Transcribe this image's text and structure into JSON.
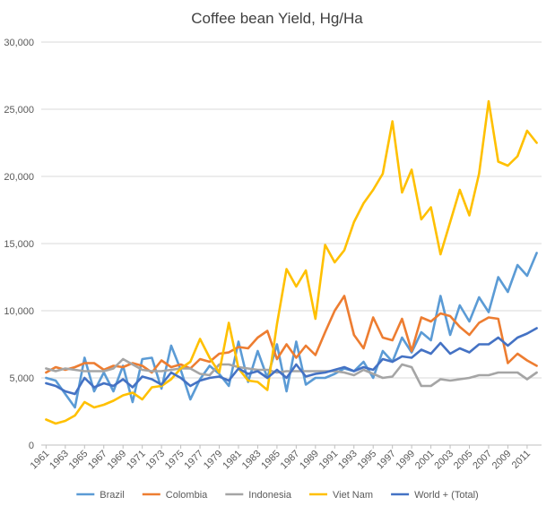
{
  "chart_data": {
    "type": "line",
    "title": "Coffee bean Yield, Hg/Ha",
    "xlabel": "",
    "ylabel": "",
    "ylim": [
      0,
      30000
    ],
    "yticks": [
      "0",
      "5,000",
      "10,000",
      "15,000",
      "20,000",
      "25,000",
      "30,000"
    ],
    "ytick_values": [
      0,
      5000,
      10000,
      15000,
      20000,
      25000,
      30000
    ],
    "x": [
      1961,
      1962,
      1963,
      1964,
      1965,
      1966,
      1967,
      1968,
      1969,
      1970,
      1971,
      1972,
      1973,
      1974,
      1975,
      1976,
      1977,
      1978,
      1979,
      1980,
      1981,
      1982,
      1983,
      1984,
      1985,
      1986,
      1987,
      1988,
      1989,
      1990,
      1991,
      1992,
      1993,
      1994,
      1995,
      1996,
      1997,
      1998,
      1999,
      2000,
      2001,
      2002,
      2003,
      2004,
      2005,
      2006,
      2007,
      2008,
      2009,
      2010,
      2011,
      2012
    ],
    "xtick_labels": [
      "1961",
      "1963",
      "1965",
      "1967",
      "1969",
      "1971",
      "1973",
      "1975",
      "1977",
      "1979",
      "1981",
      "1983",
      "1985",
      "1987",
      "1989",
      "1991",
      "1993",
      "1995",
      "1997",
      "1999",
      "2001",
      "2003",
      "2005",
      "2007",
      "2009",
      "2011"
    ],
    "legend_position": "bottom",
    "grid": true,
    "series": [
      {
        "name": "Brazil",
        "color": "#5b9bd5",
        "values": [
          5000,
          4800,
          3800,
          2800,
          6500,
          4000,
          5400,
          4000,
          5900,
          3200,
          6400,
          6500,
          4200,
          7400,
          5600,
          3400,
          4900,
          5900,
          5300,
          4400,
          7700,
          4700,
          7000,
          5000,
          7500,
          4000,
          7700,
          4500,
          5000,
          5000,
          5300,
          5700,
          5500,
          6200,
          5000,
          7000,
          6200,
          8000,
          6900,
          8400,
          7800,
          11100,
          8200,
          10400,
          9200,
          11000,
          9900,
          12500,
          11400,
          13400,
          12600,
          14300
        ]
      },
      {
        "name": "Colombia",
        "color": "#ed7d31",
        "values": [
          5400,
          5800,
          5600,
          5800,
          6100,
          6100,
          5600,
          5900,
          5800,
          6100,
          5900,
          5400,
          6300,
          5800,
          6000,
          5700,
          6400,
          6200,
          6800,
          6900,
          7300,
          7200,
          8000,
          8500,
          6400,
          7500,
          6500,
          7400,
          6700,
          8400,
          10000,
          11100,
          8200,
          7200,
          9500,
          8000,
          7800,
          9400,
          7000,
          9500,
          9200,
          9800,
          9600,
          8800,
          8200,
          9100,
          9500,
          9400,
          6100,
          6800,
          6300,
          5900
        ]
      },
      {
        "name": "Indonesia",
        "color": "#a5a5a5",
        "values": [
          5700,
          5500,
          5700,
          5600,
          5500,
          5500,
          5500,
          5700,
          6400,
          6000,
          5600,
          5500,
          5500,
          5600,
          5700,
          5700,
          5300,
          5200,
          6000,
          6000,
          5800,
          5700,
          5600,
          5600,
          5400,
          5500,
          5500,
          5500,
          5500,
          5500,
          5500,
          5400,
          5200,
          5600,
          5300,
          5000,
          5100,
          6000,
          5800,
          4400,
          4400,
          4900,
          4800,
          4900,
          5000,
          5200,
          5200,
          5400,
          5400,
          5400,
          4900,
          5400
        ]
      },
      {
        "name": "Viet Nam",
        "color": "#ffc000",
        "values": [
          1900,
          1600,
          1800,
          2200,
          3200,
          2800,
          3000,
          3300,
          3700,
          3900,
          3400,
          4300,
          4400,
          4900,
          5700,
          6200,
          7900,
          6500,
          5400,
          9100,
          5700,
          4800,
          4700,
          4100,
          9000,
          13100,
          11800,
          13000,
          9400,
          14900,
          13600,
          14500,
          16600,
          18000,
          19000,
          20200,
          24100,
          18800,
          20500,
          16800,
          17700,
          14200,
          16600,
          19000,
          17100,
          20200,
          25600,
          21100,
          20800,
          21500,
          23400,
          22500
        ]
      },
      {
        "name": "World + (Total)",
        "color": "#4472c4",
        "values": [
          4600,
          4400,
          4000,
          3800,
          5000,
          4300,
          4600,
          4400,
          4900,
          4300,
          5100,
          4900,
          4500,
          5400,
          5000,
          4400,
          4800,
          5000,
          5100,
          4800,
          5700,
          5300,
          5500,
          5000,
          5600,
          5000,
          6000,
          5100,
          5300,
          5400,
          5600,
          5800,
          5500,
          5800,
          5600,
          6400,
          6200,
          6600,
          6500,
          7100,
          6800,
          7600,
          6800,
          7200,
          6900,
          7500,
          7500,
          8000,
          7400,
          8000,
          8300,
          8700
        ]
      }
    ]
  }
}
